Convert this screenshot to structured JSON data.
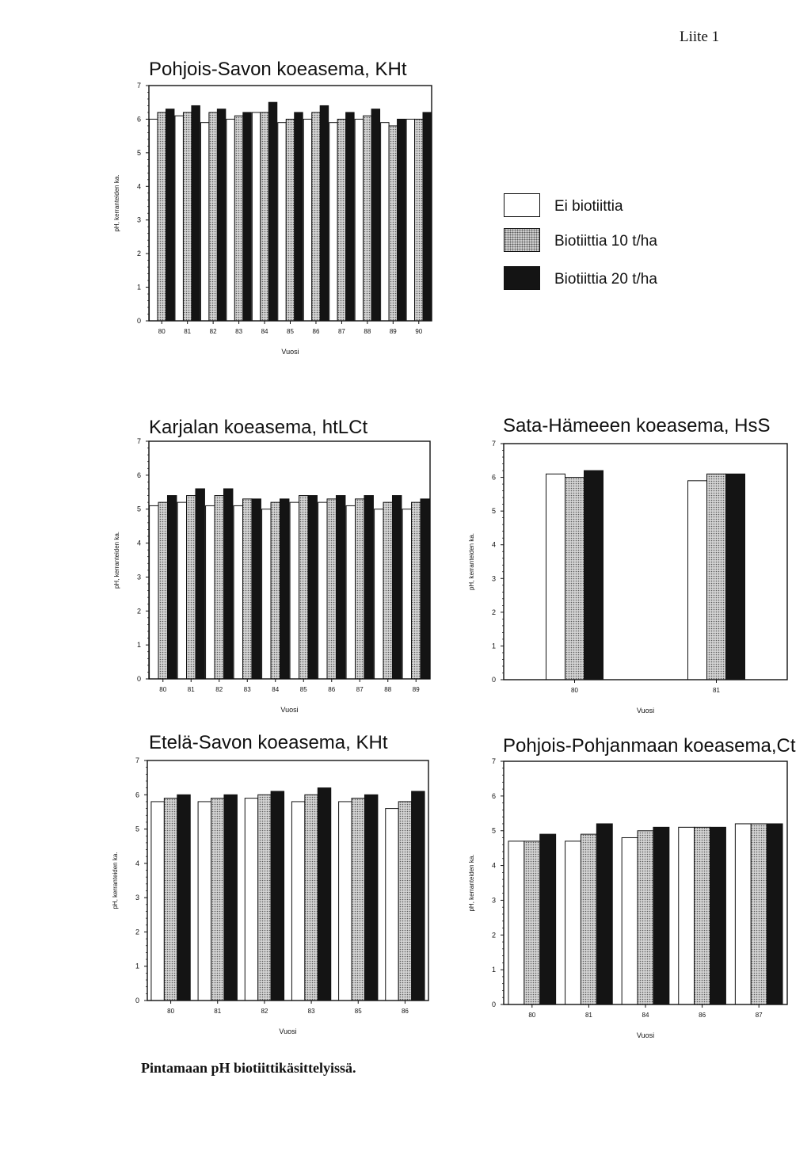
{
  "page_label": "Liite 1",
  "caption": "Pintamaan pH biotiittikäsittelyissä.",
  "legend": [
    {
      "label": "Ei biotiittia",
      "pattern": "white"
    },
    {
      "label": "Biotiittia 10 t/ha",
      "pattern": "dots"
    },
    {
      "label": "Biotiittia 20 t/ha",
      "pattern": "black"
    }
  ],
  "colors": {
    "outline": "#111111",
    "bar_dark": "#141414",
    "bar_light": "#ffffff",
    "dot_fill": "#d4d4d4"
  },
  "chart_data": [
    {
      "type": "bar",
      "title": "Pohjois-Savon koeasema, KHt",
      "xlabel": "Vuosi",
      "ylabel": "pH, kerranteiden ka.",
      "ylim": [
        0,
        7
      ],
      "yticks": [
        "0",
        "1",
        "2",
        "3",
        "4",
        "5",
        "6",
        "7"
      ],
      "categories": [
        "80",
        "81",
        "82",
        "83",
        "84",
        "85",
        "86",
        "87",
        "88",
        "89",
        "90"
      ],
      "series": [
        {
          "name": "Ei biotiittia",
          "values": [
            6.0,
            6.1,
            5.9,
            6.0,
            6.2,
            5.9,
            6.0,
            5.9,
            6.0,
            5.9,
            6.0
          ]
        },
        {
          "name": "Biotiittia 10 t/ha",
          "values": [
            6.2,
            6.2,
            6.2,
            6.1,
            6.2,
            6.0,
            6.2,
            6.0,
            6.1,
            5.8,
            6.0
          ]
        },
        {
          "name": "Biotiittia 20 t/ha",
          "values": [
            6.3,
            6.4,
            6.3,
            6.2,
            6.5,
            6.2,
            6.4,
            6.2,
            6.3,
            6.0,
            6.2
          ]
        }
      ]
    },
    {
      "type": "bar",
      "title": "Karjalan koeasema, htLCt",
      "xlabel": "Vuosi",
      "ylabel": "pH, kerranteiden ka.",
      "ylim": [
        0,
        7
      ],
      "yticks": [
        "0",
        "1",
        "2",
        "3",
        "4",
        "5",
        "6",
        "7"
      ],
      "categories": [
        "80",
        "81",
        "82",
        "83",
        "84",
        "85",
        "86",
        "87",
        "88",
        "89"
      ],
      "series": [
        {
          "name": "Ei biotiittia",
          "values": [
            5.1,
            5.2,
            5.1,
            5.1,
            5.0,
            5.2,
            5.2,
            5.1,
            5.0,
            5.0
          ]
        },
        {
          "name": "Biotiittia 10 t/ha",
          "values": [
            5.2,
            5.4,
            5.4,
            5.3,
            5.2,
            5.4,
            5.3,
            5.3,
            5.2,
            5.2
          ]
        },
        {
          "name": "Biotiittia 20 t/ha",
          "values": [
            5.4,
            5.6,
            5.6,
            5.3,
            5.3,
            5.4,
            5.4,
            5.4,
            5.4,
            5.3
          ]
        }
      ]
    },
    {
      "type": "bar",
      "title": "Sata-Hämeeen koeasema, HsS",
      "xlabel": "Vuosi",
      "ylabel": "pH, kerranteiden ka.",
      "ylim": [
        0,
        7
      ],
      "yticks": [
        "0",
        "1",
        "2",
        "3",
        "4",
        "5",
        "6",
        "7"
      ],
      "categories": [
        "80",
        "81"
      ],
      "series": [
        {
          "name": "Ei biotiittia",
          "values": [
            6.1,
            5.9
          ]
        },
        {
          "name": "Biotiittia 10 t/ha",
          "values": [
            6.0,
            6.1
          ]
        },
        {
          "name": "Biotiittia 20 t/ha",
          "values": [
            6.2,
            6.1
          ]
        }
      ]
    },
    {
      "type": "bar",
      "title": "Etelä-Savon koeasema, KHt",
      "xlabel": "Vuosi",
      "ylabel": "pH, kerranteiden ka.",
      "ylim": [
        0,
        7
      ],
      "yticks": [
        "0",
        "1",
        "2",
        "3",
        "4",
        "5",
        "6",
        "7"
      ],
      "categories": [
        "80",
        "81",
        "82",
        "83",
        "85",
        "86"
      ],
      "series": [
        {
          "name": "Ei biotiittia",
          "values": [
            5.8,
            5.8,
            5.9,
            5.8,
            5.8,
            5.6
          ]
        },
        {
          "name": "Biotiittia 10 t/ha",
          "values": [
            5.9,
            5.9,
            6.0,
            6.0,
            5.9,
            5.8
          ]
        },
        {
          "name": "Biotiittia 20 t/ha",
          "values": [
            6.0,
            6.0,
            6.1,
            6.2,
            6.0,
            6.1
          ]
        }
      ]
    },
    {
      "type": "bar",
      "title": "Pohjois-Pohjanmaan koeasema,Ct",
      "xlabel": "Vuosi",
      "ylabel": "pH, kerranteiden ka.",
      "ylim": [
        0,
        7
      ],
      "yticks": [
        "0",
        "1",
        "2",
        "3",
        "4",
        "5",
        "6",
        "7"
      ],
      "categories": [
        "80",
        "81",
        "84",
        "86",
        "87"
      ],
      "series": [
        {
          "name": "Ei biotiittia",
          "values": [
            4.7,
            4.7,
            4.8,
            5.1,
            5.2
          ]
        },
        {
          "name": "Biotiittia 10 t/ha",
          "values": [
            4.7,
            4.9,
            5.0,
            5.1,
            5.2
          ]
        },
        {
          "name": "Biotiittia 20 t/ha",
          "values": [
            4.9,
            5.2,
            5.1,
            5.1,
            5.2
          ]
        }
      ]
    }
  ]
}
